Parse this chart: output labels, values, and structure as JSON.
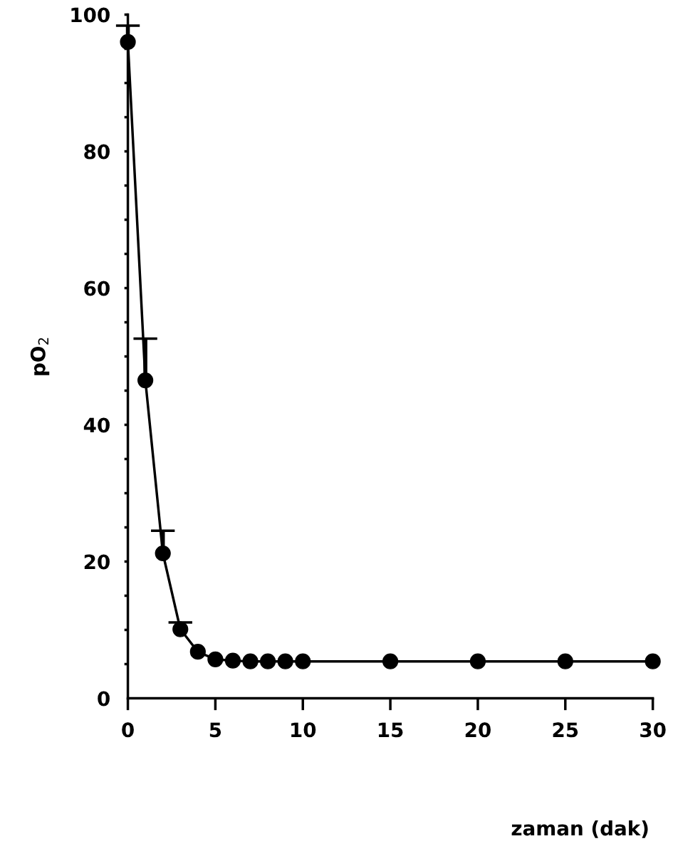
{
  "chart_data": {
    "type": "line",
    "annotations": [
      "zaman (dak)"
    ],
    "ylabel": "pO$_{2}$",
    "x": [
      0,
      1,
      2,
      3,
      4,
      5,
      6,
      7,
      8,
      9,
      10,
      15,
      20,
      25,
      30
    ],
    "series": [
      {
        "color": "#000000",
        "values": [
          96,
          46.5,
          21.2,
          10.1,
          6.8,
          5.7,
          5.5,
          5.4,
          5.4,
          5.4,
          5.4,
          5.4,
          5.4,
          5.4,
          5.4
        ],
        "errors": [
          [
            96,
            98.4
          ],
          [
            46.5,
            52.6
          ],
          [
            21.2,
            24.5
          ],
          [
            10.1,
            11.1
          ],
          null,
          null,
          null,
          null,
          null,
          null,
          null,
          null,
          null,
          null,
          null
        ]
      }
    ],
    "xlim": [
      0,
      30
    ],
    "xticks": [
      0,
      5,
      10,
      15,
      20,
      25,
      30
    ],
    "ylim": [
      0,
      100
    ],
    "yticks": [
      0,
      {
        "value": 5,
        "label": null
      },
      {
        "value": 10,
        "label": null
      },
      {
        "value": 15,
        "label": null
      },
      20,
      {
        "value": 25,
        "label": null
      },
      {
        "value": 30,
        "label": null
      },
      {
        "value": 35,
        "label": null
      },
      40,
      {
        "value": 45,
        "label": null
      },
      {
        "value": 50,
        "label": null
      },
      {
        "value": 55,
        "label": null
      },
      60,
      {
        "value": 65,
        "label": null
      },
      {
        "value": 70,
        "label": null
      },
      {
        "value": 75,
        "label": null
      },
      80,
      {
        "value": 85,
        "label": null
      },
      {
        "value": 90,
        "label": null
      },
      {
        "value": 95,
        "label": null
      },
      100
    ],
    "marker": "circle",
    "line_style": "solid",
    "grid": false,
    "legend": false
  }
}
